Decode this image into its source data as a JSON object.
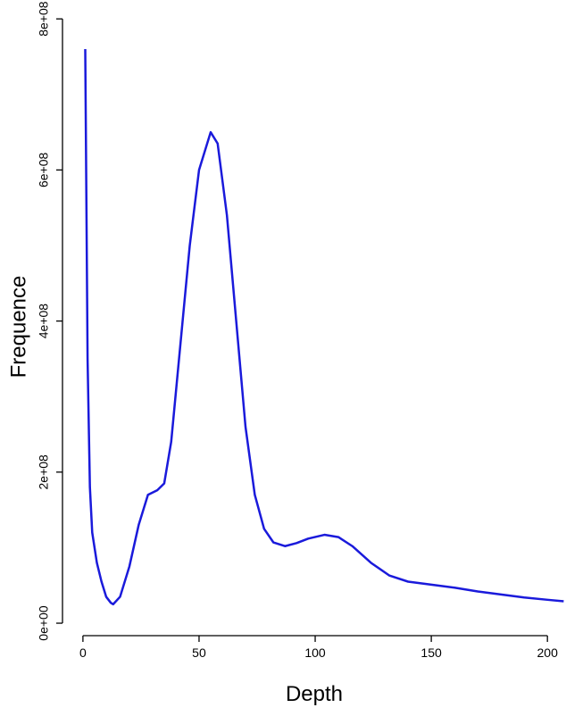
{
  "chart_data": {
    "type": "line",
    "x_label": "Depth",
    "y_label": "Frequence",
    "x": [
      1,
      2,
      3,
      4,
      6,
      8,
      10,
      12,
      13,
      16,
      20,
      24,
      28,
      32,
      35,
      38,
      42,
      46,
      50,
      55,
      58,
      62,
      66,
      70,
      74,
      78,
      82,
      87,
      92,
      97,
      104,
      110,
      116,
      124,
      132,
      140,
      150,
      160,
      170,
      180,
      190,
      200,
      207
    ],
    "series": [
      {
        "name": "Frequence",
        "color": "#1a1adb",
        "values": [
          760000000,
          350000000,
          180000000,
          120000000,
          80000000,
          55000000,
          35000000,
          27000000,
          25000000,
          35000000,
          75000000,
          130000000,
          170000000,
          176000000,
          185000000,
          240000000,
          370000000,
          500000000,
          600000000,
          650000000,
          635000000,
          540000000,
          400000000,
          260000000,
          170000000,
          125000000,
          107000000,
          102000000,
          106000000,
          112000000,
          117000000,
          114000000,
          102000000,
          80000000,
          63000000,
          55000000,
          51000000,
          47000000,
          42000000,
          38000000,
          34000000,
          31000000,
          29000000
        ]
      }
    ],
    "xlim": [
      -8.8,
      208
    ],
    "xticks": [
      0,
      50,
      100,
      150,
      200
    ],
    "ylim": [
      -16500000,
      825000000
    ],
    "yticks": [
      {
        "value": 0,
        "label": "0e+00"
      },
      {
        "value": 200000000,
        "label": "2e+08"
      },
      {
        "value": 400000000,
        "label": "4e+08"
      },
      {
        "value": 600000000,
        "label": "6e+08"
      },
      {
        "value": 800000000,
        "label": "8e+08"
      }
    ],
    "grid": false
  }
}
